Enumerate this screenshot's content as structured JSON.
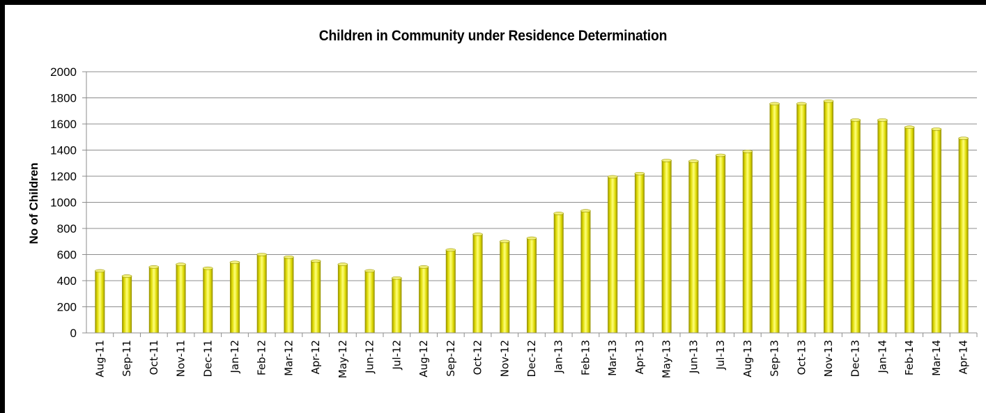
{
  "chart_data": {
    "type": "bar",
    "title": "Children in Community under Residence Determination",
    "xlabel": "",
    "ylabel": "No of Children",
    "ylim": [
      0,
      2000
    ],
    "yticks": [
      0,
      200,
      400,
      600,
      800,
      1000,
      1200,
      1400,
      1600,
      1800,
      2000
    ],
    "grid": true,
    "legend": "none",
    "bar_color": "#e8e600",
    "categories": [
      "Aug-11",
      "Sep-11",
      "Oct-11",
      "Nov-11",
      "Dec-11",
      "Jan-12",
      "Feb-12",
      "Mar-12",
      "Apr-12",
      "May-12",
      "Jun-12",
      "Jul-12",
      "Aug-12",
      "Sep-12",
      "Oct-12",
      "Nov-12",
      "Dec-12",
      "Jan-13",
      "Feb-13",
      "Mar-13",
      "Apr-13",
      "May-13",
      "Jun-13",
      "Jul-13",
      "Aug-13",
      "Sep-13",
      "Oct-13",
      "Nov-13",
      "Dec-13",
      "Jan-14",
      "Feb-14",
      "Mar-14",
      "Apr-14"
    ],
    "values": [
      475,
      435,
      505,
      525,
      495,
      540,
      600,
      580,
      550,
      525,
      475,
      420,
      505,
      635,
      755,
      700,
      725,
      915,
      935,
      1195,
      1220,
      1320,
      1315,
      1360,
      1390,
      1755,
      1755,
      1775,
      1630,
      1630,
      1575,
      1560,
      1490
    ]
  }
}
